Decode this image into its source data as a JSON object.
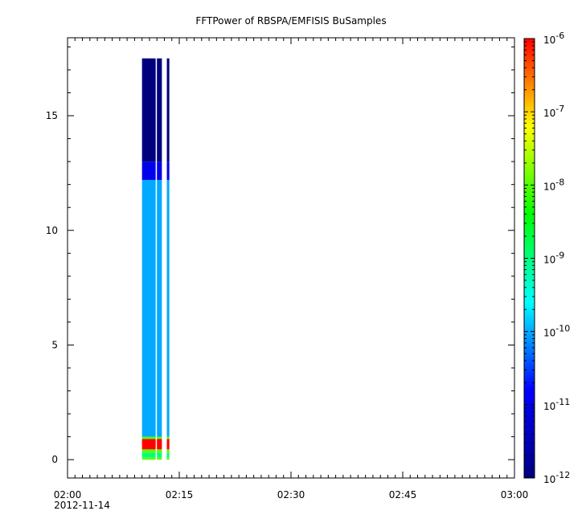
{
  "chart_data": {
    "type": "heatmap",
    "title": "FFTPower of RBSPA/EMFISIS  BuSamples",
    "xlabel": "",
    "ylabel": "",
    "x_range": [
      "02:00",
      "03:00"
    ],
    "x_ticks": [
      "02:00",
      "02:15",
      "02:30",
      "02:45",
      "03:00"
    ],
    "x_date_label": "2012-11-14",
    "ylim": [
      -0.8,
      18.4
    ],
    "y_ticks": [
      0,
      5,
      10,
      15
    ],
    "colorbar": {
      "scale": "log",
      "range": [
        1e-12,
        1e-06
      ],
      "tick_labels": [
        "10",
        "10",
        "10",
        "10",
        "10",
        "10",
        "10"
      ],
      "tick_exponents": [
        "-12",
        "-11",
        "-10",
        "-9",
        "-8",
        "-7",
        "-6"
      ],
      "colormap": [
        "#00007f",
        "#0000ff",
        "#00ffff",
        "#00ff00",
        "#ffff00",
        "#ff0000"
      ]
    },
    "data_columns": [
      {
        "start": "02:10:00",
        "end": "02:11:50"
      },
      {
        "start": "02:12:00",
        "end": "02:12:40"
      },
      {
        "start": "02:13:20",
        "end": "02:13:40"
      }
    ],
    "spectrum_bands": [
      {
        "y_from": 0.0,
        "y_to": 0.1,
        "level": "1e-8"
      },
      {
        "y_from": 0.1,
        "y_to": 0.3,
        "level": "1e-9"
      },
      {
        "y_from": 0.3,
        "y_to": 0.45,
        "level": "1e-8"
      },
      {
        "y_from": 0.45,
        "y_to": 0.9,
        "level": "1e-6"
      },
      {
        "y_from": 0.9,
        "y_to": 1.0,
        "level": "1e-8"
      },
      {
        "y_from": 1.0,
        "y_to": 12.2,
        "level": "1e-10"
      },
      {
        "y_from": 12.2,
        "y_to": 13.0,
        "level": "1e-11"
      },
      {
        "y_from": 13.0,
        "y_to": 17.5,
        "level": "1e-12"
      }
    ]
  }
}
